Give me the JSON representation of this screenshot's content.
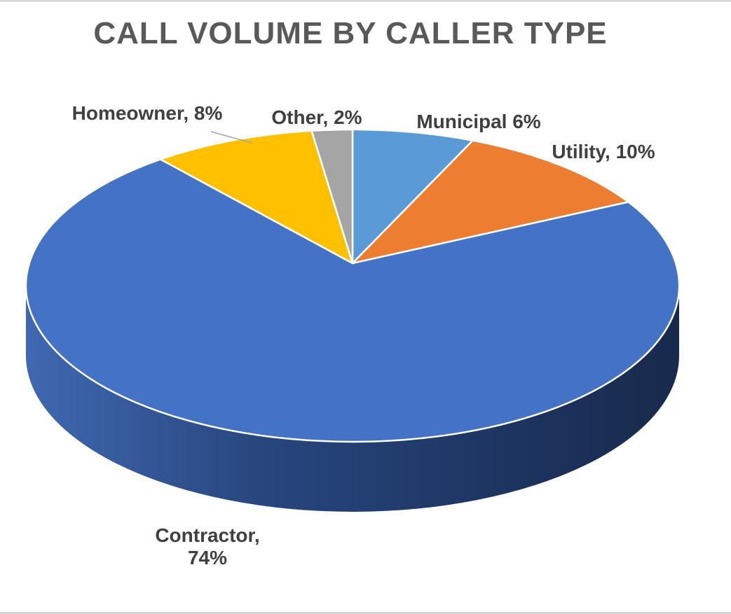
{
  "page": {
    "background": "#ffffff",
    "border_color": "#d6d6d6"
  },
  "chart_data": {
    "type": "pie",
    "style": "3d-pie",
    "title": "CALL VOLUME BY CALLER TYPE",
    "title_color": "#595959",
    "label_color": "#404040",
    "leader_line_color": "#a6a6a6",
    "start_angle_deg": 0,
    "direction": "clockwise",
    "legend": "none",
    "labels_position": "outside",
    "slices": [
      {
        "label": "Municipal",
        "value_pct": 6,
        "color": "#5B9BD5",
        "data_label": "Municipal 6%"
      },
      {
        "label": "Utility",
        "value_pct": 10,
        "color": "#ED7D31",
        "data_label": "Utility, 10%"
      },
      {
        "label": "Contractor",
        "value_pct": 74,
        "color": "#4472C4",
        "data_label": "Contractor, 74%",
        "label_lines": [
          "Contractor,",
          "74%"
        ]
      },
      {
        "label": "Homeowner",
        "value_pct": 8,
        "color": "#FFC000",
        "data_label": "Homeowner, 8%"
      },
      {
        "label": "Other",
        "value_pct": 2,
        "color": "#A5A5A5",
        "data_label": "Other, 2%"
      }
    ],
    "side_gradient": [
      "#4068B1",
      "#28477F",
      "#1E3663",
      "#182A4C"
    ]
  }
}
